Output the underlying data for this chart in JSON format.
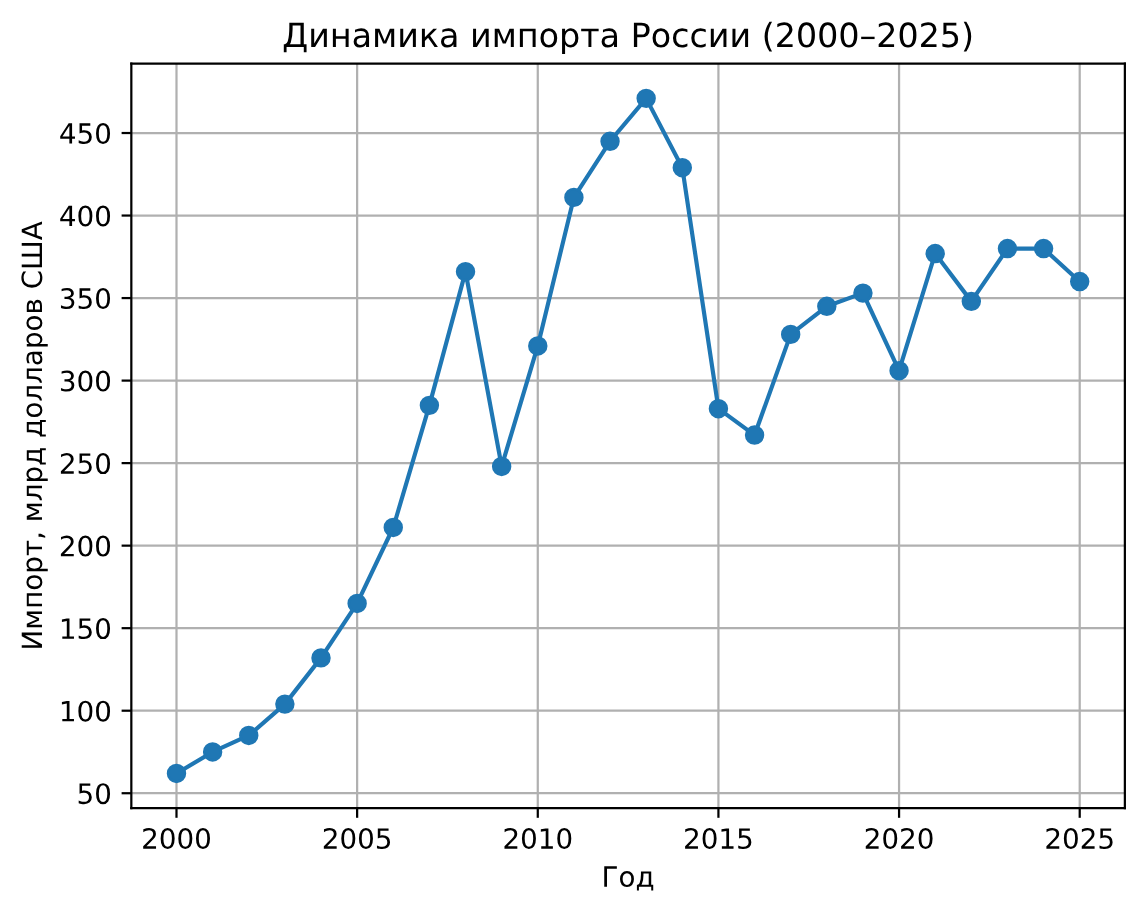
{
  "chart_data": {
    "type": "line",
    "title": "Динамика импорта России (2000–2025)",
    "xlabel": "Год",
    "ylabel": "Импорт, млрд долларов США",
    "x": [
      2000,
      2001,
      2002,
      2003,
      2004,
      2005,
      2006,
      2007,
      2008,
      2009,
      2010,
      2011,
      2012,
      2013,
      2014,
      2015,
      2016,
      2017,
      2018,
      2019,
      2020,
      2021,
      2022,
      2023,
      2024,
      2025
    ],
    "series": [
      {
        "color": "#1f77b4",
        "values": [
          62,
          75,
          85,
          104,
          132,
          165,
          211,
          285,
          366,
          248,
          321,
          411,
          445,
          471,
          429,
          283,
          267,
          328,
          345,
          353,
          306,
          377,
          348,
          380,
          380,
          360
        ]
      }
    ],
    "xlim": [
      1998.75,
      2026.25
    ],
    "xticks": [
      2000,
      2005,
      2010,
      2015,
      2020,
      2025
    ],
    "ylim": [
      41,
      492
    ],
    "yticks": [
      50,
      100,
      150,
      200,
      250,
      300,
      350,
      400,
      450
    ],
    "grid": true,
    "marker": "circle",
    "line_style": "solid"
  }
}
